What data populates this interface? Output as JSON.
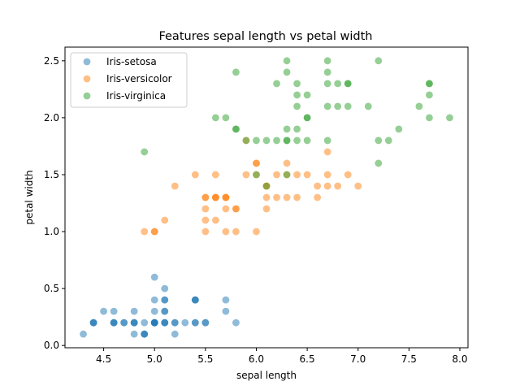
{
  "chart_data": {
    "type": "scatter",
    "title": "Features sepal length vs petal width",
    "xlabel": "sepal length",
    "ylabel": "petal width",
    "xlim": [
      4.12,
      8.08
    ],
    "ylim": [
      -0.02,
      2.62
    ],
    "xticks": [
      4.5,
      5.0,
      5.5,
      6.0,
      6.5,
      7.0,
      7.5,
      8.0
    ],
    "xtick_labels": [
      "4.5",
      "5.0",
      "5.5",
      "6.0",
      "6.5",
      "7.0",
      "7.5",
      "8.0"
    ],
    "yticks": [
      0.0,
      0.5,
      1.0,
      1.5,
      2.0,
      2.5
    ],
    "ytick_labels": [
      "0.0",
      "0.5",
      "1.0",
      "1.5",
      "2.0",
      "2.5"
    ],
    "grid": false,
    "legend_position": "top-left",
    "marker_alpha": 0.5,
    "series": [
      {
        "name": "Iris-setosa",
        "color": "#1f77b4",
        "points": [
          [
            5.1,
            0.2
          ],
          [
            4.9,
            0.2
          ],
          [
            4.7,
            0.2
          ],
          [
            4.6,
            0.2
          ],
          [
            5.0,
            0.2
          ],
          [
            5.4,
            0.4
          ],
          [
            4.6,
            0.3
          ],
          [
            5.0,
            0.2
          ],
          [
            4.4,
            0.2
          ],
          [
            4.9,
            0.1
          ],
          [
            5.4,
            0.2
          ],
          [
            4.8,
            0.2
          ],
          [
            4.8,
            0.1
          ],
          [
            4.3,
            0.1
          ],
          [
            5.8,
            0.2
          ],
          [
            5.7,
            0.4
          ],
          [
            5.4,
            0.4
          ],
          [
            5.1,
            0.3
          ],
          [
            5.7,
            0.3
          ],
          [
            5.1,
            0.3
          ],
          [
            5.4,
            0.2
          ],
          [
            5.1,
            0.4
          ],
          [
            4.6,
            0.2
          ],
          [
            5.1,
            0.5
          ],
          [
            4.8,
            0.2
          ],
          [
            5.0,
            0.2
          ],
          [
            5.0,
            0.4
          ],
          [
            5.2,
            0.2
          ],
          [
            5.2,
            0.2
          ],
          [
            4.7,
            0.2
          ],
          [
            4.8,
            0.2
          ],
          [
            5.4,
            0.4
          ],
          [
            5.2,
            0.1
          ],
          [
            5.5,
            0.2
          ],
          [
            4.9,
            0.1
          ],
          [
            5.0,
            0.2
          ],
          [
            5.5,
            0.2
          ],
          [
            4.9,
            0.1
          ],
          [
            4.4,
            0.2
          ],
          [
            5.1,
            0.2
          ],
          [
            5.0,
            0.3
          ],
          [
            4.5,
            0.3
          ],
          [
            4.4,
            0.2
          ],
          [
            5.0,
            0.6
          ],
          [
            5.1,
            0.4
          ],
          [
            4.8,
            0.3
          ],
          [
            5.1,
            0.2
          ],
          [
            4.6,
            0.2
          ],
          [
            5.3,
            0.2
          ],
          [
            5.0,
            0.2
          ]
        ]
      },
      {
        "name": "Iris-versicolor",
        "color": "#ff7f0e",
        "points": [
          [
            7.0,
            1.4
          ],
          [
            6.4,
            1.5
          ],
          [
            6.9,
            1.5
          ],
          [
            5.5,
            1.3
          ],
          [
            6.5,
            1.5
          ],
          [
            5.7,
            1.3
          ],
          [
            6.3,
            1.6
          ],
          [
            4.9,
            1.0
          ],
          [
            6.6,
            1.3
          ],
          [
            5.2,
            1.4
          ],
          [
            5.0,
            1.0
          ],
          [
            5.9,
            1.5
          ],
          [
            6.0,
            1.0
          ],
          [
            6.1,
            1.4
          ],
          [
            5.6,
            1.3
          ],
          [
            6.7,
            1.4
          ],
          [
            5.6,
            1.5
          ],
          [
            5.8,
            1.0
          ],
          [
            6.2,
            1.5
          ],
          [
            5.6,
            1.1
          ],
          [
            5.9,
            1.8
          ],
          [
            6.1,
            1.3
          ],
          [
            6.3,
            1.5
          ],
          [
            6.1,
            1.2
          ],
          [
            6.4,
            1.3
          ],
          [
            6.6,
            1.4
          ],
          [
            6.8,
            1.4
          ],
          [
            6.7,
            1.7
          ],
          [
            6.0,
            1.5
          ],
          [
            5.7,
            1.0
          ],
          [
            5.5,
            1.1
          ],
          [
            5.5,
            1.0
          ],
          [
            5.8,
            1.2
          ],
          [
            6.0,
            1.6
          ],
          [
            5.4,
            1.5
          ],
          [
            6.0,
            1.6
          ],
          [
            6.7,
            1.5
          ],
          [
            6.3,
            1.3
          ],
          [
            5.6,
            1.3
          ],
          [
            5.5,
            1.3
          ],
          [
            5.5,
            1.2
          ],
          [
            6.1,
            1.4
          ],
          [
            5.8,
            1.2
          ],
          [
            5.0,
            1.0
          ],
          [
            5.6,
            1.3
          ],
          [
            5.7,
            1.2
          ],
          [
            5.7,
            1.3
          ],
          [
            6.2,
            1.3
          ],
          [
            5.1,
            1.1
          ],
          [
            5.7,
            1.3
          ]
        ]
      },
      {
        "name": "Iris-virginica",
        "color": "#2ca02c",
        "points": [
          [
            6.3,
            2.5
          ],
          [
            5.8,
            1.9
          ],
          [
            7.1,
            2.1
          ],
          [
            6.3,
            1.8
          ],
          [
            6.5,
            2.2
          ],
          [
            7.6,
            2.1
          ],
          [
            4.9,
            1.7
          ],
          [
            7.3,
            1.8
          ],
          [
            6.7,
            1.8
          ],
          [
            7.2,
            2.5
          ],
          [
            6.5,
            2.0
          ],
          [
            6.4,
            1.9
          ],
          [
            6.8,
            2.1
          ],
          [
            5.7,
            2.0
          ],
          [
            5.8,
            2.4
          ],
          [
            6.4,
            2.3
          ],
          [
            6.5,
            1.8
          ],
          [
            7.7,
            2.2
          ],
          [
            7.7,
            2.3
          ],
          [
            6.0,
            1.5
          ],
          [
            6.9,
            2.3
          ],
          [
            5.6,
            2.0
          ],
          [
            7.7,
            2.0
          ],
          [
            6.3,
            1.8
          ],
          [
            6.7,
            2.1
          ],
          [
            7.2,
            1.8
          ],
          [
            6.2,
            1.8
          ],
          [
            6.1,
            1.8
          ],
          [
            6.4,
            2.1
          ],
          [
            7.2,
            1.6
          ],
          [
            7.4,
            1.9
          ],
          [
            7.9,
            2.0
          ],
          [
            6.4,
            2.2
          ],
          [
            6.3,
            1.5
          ],
          [
            6.1,
            1.4
          ],
          [
            7.7,
            2.3
          ],
          [
            6.3,
            2.4
          ],
          [
            6.4,
            1.8
          ],
          [
            6.0,
            1.8
          ],
          [
            6.9,
            2.1
          ],
          [
            6.7,
            2.4
          ],
          [
            6.9,
            2.3
          ],
          [
            5.8,
            1.9
          ],
          [
            6.8,
            2.3
          ],
          [
            6.7,
            2.5
          ],
          [
            6.7,
            2.3
          ],
          [
            6.3,
            1.9
          ],
          [
            6.5,
            2.0
          ],
          [
            6.2,
            2.3
          ],
          [
            5.9,
            1.8
          ]
        ]
      }
    ]
  }
}
